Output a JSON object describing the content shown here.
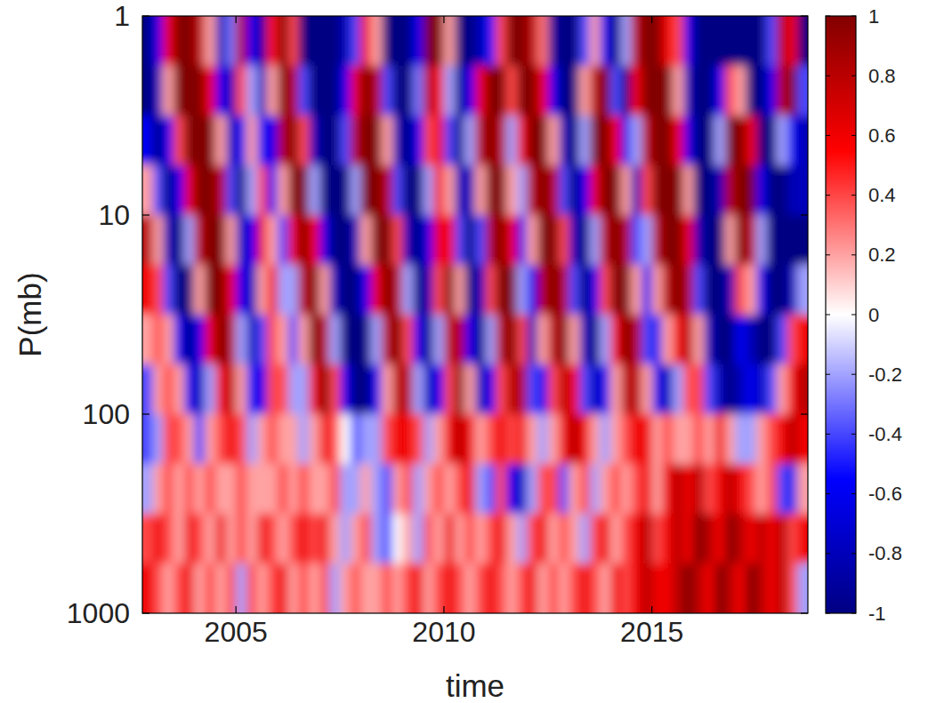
{
  "chart_data": {
    "type": "heatmap",
    "x_label": "time",
    "y_label": "P(mb)",
    "xlim": [
      2002.75,
      2018.75
    ],
    "xticks": [
      2005,
      2010,
      2015
    ],
    "ylim": [
      1000,
      1
    ],
    "yticks": [
      1,
      10,
      100,
      1000
    ],
    "log": "y",
    "cells": {
      "x": [
        2002.875,
        2003.125,
        2003.375,
        2003.625,
        2003.875,
        2004.125,
        2004.375,
        2004.625,
        2004.875,
        2005.125,
        2005.375,
        2005.625,
        2005.875,
        2006.125,
        2006.375,
        2006.625,
        2006.875,
        2007.125,
        2007.375,
        2007.625,
        2007.875,
        2008.125,
        2008.375,
        2008.625,
        2008.875,
        2009.125,
        2009.375,
        2009.625,
        2009.875,
        2010.125,
        2010.375,
        2010.625,
        2010.875,
        2011.125,
        2011.375,
        2011.625,
        2011.875,
        2012.125,
        2012.375,
        2012.625,
        2012.875,
        2013.125,
        2013.375,
        2013.625,
        2013.875,
        2014.125,
        2014.375,
        2014.625,
        2014.875,
        2015.125,
        2015.375,
        2015.625,
        2015.875,
        2016.125,
        2016.375,
        2016.625,
        2016.875,
        2017.125,
        2017.375,
        2017.625,
        2017.875,
        2018.125,
        2018.375,
        2018.625
      ],
      "y": [
        1.33,
        2.37,
        4.22,
        7.5,
        13.3,
        23.7,
        42.2,
        75,
        133,
        237,
        422,
        750
      ],
      "values": [
        [
          -1,
          -0.6,
          0.6,
          1,
          1,
          0.8,
          0.2,
          -0.8,
          -0.3,
          0.8,
          -0.6,
          -0.9,
          0.5,
          1,
          0.4,
          -1,
          -1,
          -1,
          -1,
          -0.8,
          -0.4,
          0.6,
          0.2,
          -1,
          -1,
          -1,
          -0.6,
          1,
          1,
          0.2,
          -1,
          -1,
          -0.8,
          -0.5,
          0.4,
          1,
          1,
          0.8,
          0.3,
          -0.9,
          -1,
          -1,
          -0.4,
          0.2,
          -0.6,
          -1,
          -0.2,
          0.8,
          1,
          1,
          0.6,
          0.4,
          -0.6,
          -1,
          -1,
          -1,
          -1,
          -1,
          -1,
          -1,
          -0.4,
          0.8,
          0.6,
          -1
        ],
        [
          -1,
          -0.8,
          0.2,
          1,
          1,
          1,
          0.6,
          -0.6,
          -0.8,
          0.4,
          -0.2,
          -0.8,
          0.2,
          1,
          0.8,
          -0.4,
          -1,
          -1,
          -1,
          -0.6,
          0.6,
          1,
          0.8,
          -0.4,
          -1,
          -1,
          -0.3,
          0.8,
          0.6,
          -0.2,
          -1,
          -0.6,
          0.6,
          1,
          1,
          0.4,
          1,
          1,
          0.6,
          -0.6,
          -1,
          -1,
          0.2,
          0.8,
          1,
          -0.4,
          -1,
          0.6,
          1,
          1,
          1,
          0.2,
          -0.8,
          -1,
          -1,
          -0.6,
          0.4,
          0.2,
          -1,
          -1,
          -0.6,
          0.8,
          1,
          -0.4
        ],
        [
          -0.6,
          -1,
          -0.6,
          0.4,
          1,
          1,
          1,
          0.2,
          -0.8,
          -0.6,
          0.2,
          -0.6,
          -0.6,
          0.8,
          1,
          0.4,
          -0.8,
          -1,
          -1,
          -0.4,
          0.8,
          1,
          1,
          0.2,
          -0.8,
          -1,
          -0.6,
          0.4,
          0.6,
          -0.4,
          -1,
          -0.2,
          0.8,
          1,
          0.8,
          -0.2,
          0.6,
          1,
          1,
          0.2,
          -0.8,
          -1,
          -0.2,
          1,
          1,
          0.6,
          -0.6,
          -0.2,
          0.8,
          1,
          1,
          0.6,
          -0.6,
          -1,
          -1,
          -0.2,
          1,
          1,
          0.6,
          -1,
          -1,
          -0.2,
          -0.6,
          -0.8
        ],
        [
          0.2,
          -0.4,
          -1,
          -0.6,
          0.6,
          1,
          1,
          0.8,
          -0.4,
          -1,
          -0.2,
          0.4,
          -0.6,
          0.2,
          1,
          1,
          -0.2,
          -1,
          -1,
          -1,
          -0.2,
          1,
          1,
          0.8,
          -0.4,
          -1,
          -1,
          -0.2,
          0.6,
          0.2,
          -0.8,
          -0.8,
          0.2,
          1,
          1,
          0.2,
          -0.2,
          0.8,
          1,
          0.8,
          -0.4,
          -1,
          -0.6,
          0.6,
          1,
          1,
          0.2,
          -0.8,
          0.4,
          1,
          1,
          1,
          0.2,
          -1,
          -1,
          -0.8,
          0.8,
          1,
          1,
          -0.6,
          -1,
          -1,
          -0.8,
          -0.8
        ],
        [
          0.8,
          0.2,
          -0.8,
          -1,
          -0.2,
          0.8,
          1,
          1,
          0.2,
          -0.8,
          -0.6,
          0.6,
          0.2,
          -0.4,
          0.6,
          1,
          0.6,
          -0.6,
          -1,
          -1,
          -0.8,
          0.2,
          1,
          1,
          0.4,
          -0.8,
          -1,
          -0.6,
          0.6,
          0.6,
          -0.4,
          -1,
          -0.4,
          0.8,
          1,
          0.6,
          -0.6,
          0.2,
          1,
          1,
          0.4,
          -0.8,
          -1,
          -0.2,
          0.8,
          1,
          0.8,
          -0.4,
          -0.2,
          0.8,
          1,
          1,
          0.6,
          -0.8,
          -1,
          -1,
          0.2,
          1,
          0.8,
          -0.2,
          -1,
          -1,
          -1,
          -1
        ],
        [
          0.6,
          0.4,
          -0.4,
          -1,
          -1,
          0.2,
          1,
          1,
          0.6,
          -0.6,
          -0.8,
          0.2,
          0.6,
          -0.2,
          -0.2,
          0.8,
          1,
          0.2,
          -0.8,
          -1,
          -1,
          -0.6,
          0.6,
          1,
          0.8,
          -0.2,
          -1,
          -0.8,
          0.4,
          1,
          0.2,
          -1,
          -0.8,
          0.4,
          1,
          1,
          -0.2,
          -0.6,
          0.8,
          1,
          0.8,
          -0.4,
          -1,
          -0.6,
          0.4,
          1,
          1,
          0.2,
          -0.6,
          0.2,
          0.8,
          1,
          0.8,
          -0.4,
          -1,
          -1,
          -0.8,
          0.4,
          0.2,
          -0.6,
          -1,
          -1,
          -0.8,
          -0.2
        ],
        [
          0.2,
          0.4,
          0.2,
          -0.6,
          -1,
          -0.6,
          0.6,
          1,
          0.8,
          -0.2,
          -0.8,
          -0.4,
          0.4,
          0.2,
          -0.4,
          0.2,
          1,
          0.8,
          -0.2,
          -1,
          -1,
          -1,
          -0.2,
          0.8,
          1,
          0.4,
          -0.6,
          -1,
          -0.2,
          0.8,
          0.8,
          -0.6,
          -1,
          -0.2,
          0.8,
          1,
          0.4,
          -0.8,
          0.2,
          0.8,
          1,
          0.2,
          -0.8,
          -1,
          -0.2,
          0.6,
          1,
          0.8,
          -0.4,
          -0.6,
          0.2,
          0.6,
          0.8,
          0.2,
          -0.8,
          -1,
          -1,
          -0.6,
          -0.8,
          -1,
          -1,
          -0.4,
          0.4,
          0.6
        ],
        [
          -0.4,
          0.2,
          0.4,
          0.2,
          -0.6,
          -0.8,
          -0.2,
          0.6,
          0.8,
          0.2,
          -0.6,
          -0.6,
          0.4,
          0.4,
          -0.2,
          -0.2,
          0.6,
          1,
          0.4,
          -0.6,
          -1,
          -1,
          -0.6,
          0.2,
          0.8,
          0.8,
          -0.2,
          -0.8,
          -0.6,
          0.4,
          1,
          0.2,
          -0.8,
          -0.6,
          0.4,
          0.8,
          0.8,
          -0.4,
          -0.6,
          0.4,
          0.8,
          0.6,
          -0.4,
          -0.8,
          -0.6,
          0.2,
          0.8,
          0.8,
          0.2,
          -0.6,
          -0.8,
          -0.2,
          0.4,
          0.4,
          -0.4,
          -0.8,
          -1,
          -0.8,
          -0.6,
          -0.8,
          -0.4,
          0.2,
          0.6,
          0.8
        ],
        [
          -0.4,
          -0.2,
          0.4,
          0.4,
          0.2,
          -0.4,
          0.2,
          0.4,
          0.6,
          0.4,
          -0.2,
          0.2,
          0.4,
          0.2,
          0.2,
          -0.2,
          0.2,
          0.6,
          0.4,
          0,
          -0.4,
          -0.2,
          -0.2,
          0.4,
          0.6,
          0.6,
          0.4,
          -0.2,
          0.2,
          0.6,
          0.8,
          0.6,
          0.2,
          0.4,
          0.6,
          0.4,
          0.6,
          0.2,
          -0.2,
          0.2,
          0.6,
          0.8,
          0.6,
          0.2,
          -0.2,
          0.2,
          0.4,
          0.6,
          0.6,
          0.2,
          0.4,
          0.2,
          0.2,
          0.4,
          0.2,
          0.6,
          0.2,
          -0.2,
          -0.2,
          0.2,
          0.4,
          0.6,
          0.8,
          0.6
        ],
        [
          -0.2,
          0.2,
          0.4,
          0.2,
          0.4,
          0.2,
          0.4,
          0.2,
          0.2,
          0.4,
          0.2,
          0.2,
          0.2,
          0.4,
          0.2,
          0.4,
          0.2,
          0.2,
          0.4,
          -0.2,
          -0.2,
          0.2,
          -0.2,
          -0.4,
          0.2,
          0.4,
          -0.2,
          0.2,
          0.4,
          0.2,
          0.4,
          0.6,
          -0.2,
          -0.4,
          0.4,
          -0.6,
          -0.8,
          -0.2,
          0.4,
          0.4,
          -0.4,
          0.2,
          0.4,
          -0.2,
          0.2,
          0.4,
          0.2,
          0.4,
          0.6,
          0.2,
          0.6,
          0.8,
          0.6,
          0.8,
          0.4,
          0.6,
          0.8,
          0.6,
          0.4,
          0.2,
          0.4,
          -0.4,
          -0.6,
          0.2
        ],
        [
          0.4,
          0.6,
          0.4,
          0.2,
          0.6,
          0.4,
          0.2,
          0.6,
          0.2,
          0.4,
          0.2,
          0.6,
          0.4,
          0.2,
          0.4,
          0.6,
          0.4,
          0.6,
          0.2,
          -0.2,
          0.2,
          0.4,
          -0.2,
          -0.4,
          0,
          0.2,
          -0.2,
          0.4,
          0.2,
          0.6,
          0.2,
          0.4,
          0.2,
          0.4,
          0.6,
          0.2,
          -0.2,
          0.4,
          0.6,
          0.2,
          0.4,
          0.2,
          -0.2,
          0.4,
          0.6,
          0.2,
          0.4,
          0.6,
          0.8,
          0.4,
          0.6,
          0.8,
          0.6,
          1,
          0.8,
          0.6,
          1,
          0.8,
          0.6,
          0.8,
          0.6,
          0.8,
          0.4,
          0.6
        ],
        [
          0.6,
          0.4,
          0.2,
          0.4,
          0.6,
          0.2,
          0.4,
          0.2,
          0.4,
          -0.2,
          0.4,
          0.2,
          0.4,
          0.6,
          0.2,
          0.4,
          0.2,
          0.4,
          -0.2,
          0.2,
          0.4,
          0.2,
          0.2,
          0.4,
          0.2,
          0.4,
          0.6,
          0.2,
          0.4,
          0.6,
          0.4,
          0.2,
          0.4,
          0.6,
          0.4,
          0.2,
          0.4,
          0.6,
          0.2,
          0.4,
          0.2,
          0.4,
          0.6,
          0.4,
          0.2,
          0.6,
          0.4,
          0.6,
          0.8,
          0.6,
          0.6,
          0.8,
          1,
          0.8,
          0.6,
          1,
          0.8,
          0.6,
          1,
          0.8,
          0.6,
          0.8,
          0.4,
          -0.2
        ]
      ]
    },
    "colorbar": {
      "range": [
        -1,
        1
      ],
      "ticks": [
        -1,
        -0.8,
        -0.6,
        -0.4,
        -0.2,
        0,
        0.2,
        0.4,
        0.6,
        0.8,
        1
      ]
    }
  }
}
